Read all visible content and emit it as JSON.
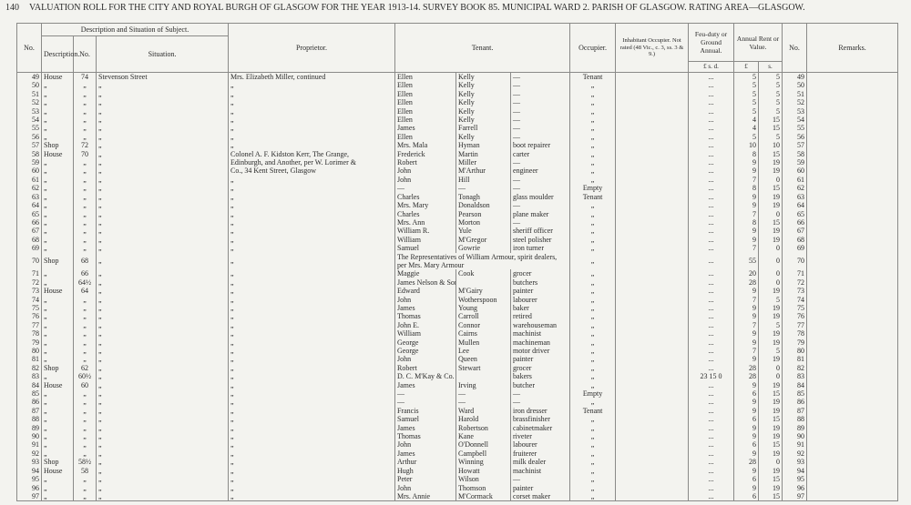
{
  "header": {
    "page_number": "140",
    "title": "VALUATION ROLL FOR THE CITY AND ROYAL BURGH OF GLASGOW FOR THE YEAR 1913-14.   SURVEY BOOK 85.   MUNICIPAL WARD 2.   PARISH OF GLASGOW.   RATING AREA—GLASGOW."
  },
  "columns": {
    "no": "No.",
    "description_situation": "Description and Situation of Subject.",
    "description": "Description.",
    "street_no": "No.",
    "situation": "Situation.",
    "proprietor": "Proprietor.",
    "tenant": "Tenant.",
    "occupier": "Occupier.",
    "inhabitant": "Inhabitant Occupier. Not rated (48 Vic., c. 3, ss. 3 & 9.)",
    "feu_duty": "Feu-duty or Ground Annual.",
    "feu_units": "£  s.  d.",
    "rent": "Annual Rent or Value.",
    "rent_pounds": "£",
    "rent_shillings": "s.",
    "no2": "No.",
    "remarks": "Remarks."
  },
  "table": {
    "rows": [
      [
        49,
        "House",
        "74",
        "Stevenson Street",
        "Mrs. Elizabeth Miller, continued",
        "Ellen",
        "Kelly",
        "—",
        "Tenant",
        "...",
        5,
        5,
        49
      ],
      [
        50,
        "„",
        "„",
        "„",
        "„",
        "Ellen",
        "Kelly",
        "—",
        "„",
        "...",
        5,
        5,
        50
      ],
      [
        51,
        "„",
        "„",
        "„",
        "„",
        "Ellen",
        "Kelly",
        "—",
        "„",
        "...",
        5,
        5,
        51
      ],
      [
        52,
        "„",
        "„",
        "„",
        "„",
        "Ellen",
        "Kelly",
        "—",
        "„",
        "...",
        5,
        5,
        52
      ],
      [
        53,
        "„",
        "„",
        "„",
        "„",
        "Ellen",
        "Kelly",
        "—",
        "„",
        "...",
        5,
        5,
        53
      ],
      [
        54,
        "„",
        "„",
        "„",
        "„",
        "Ellen",
        "Kelly",
        "—",
        "„",
        "...",
        4,
        15,
        54
      ],
      [
        55,
        "„",
        "„",
        "„",
        "„",
        "James",
        "Farrell",
        "—",
        "„",
        "...",
        4,
        15,
        55
      ],
      [
        56,
        "„",
        "„",
        "„",
        "„",
        "Ellen",
        "Kelly",
        "—",
        "„",
        "...",
        5,
        5,
        56
      ],
      [
        57,
        "Shop",
        "72",
        "„",
        "„",
        "Mrs. Mala",
        "Hyman",
        "boot repairer",
        "„",
        "...",
        10,
        10,
        57
      ],
      [
        58,
        "House",
        "70",
        "„",
        "Colonel A. F. Kidston Kerr, The Grange,",
        "Frederick",
        "Martin",
        "carter",
        "„",
        "...",
        8,
        15,
        58
      ],
      [
        59,
        "„",
        "„",
        "„",
        "Edinburgh, and Another, per W. Lorimer &",
        "Robert",
        "Miller",
        "—",
        "„",
        "...",
        9,
        19,
        59
      ],
      [
        60,
        "„",
        "„",
        "„",
        "Co., 34 Kent Street, Glasgow",
        "John",
        "M'Arthur",
        "engineer",
        "„",
        "...",
        9,
        19,
        60
      ],
      [
        61,
        "„",
        "„",
        "„",
        "„",
        "John",
        "Hill",
        "—",
        "„",
        "...",
        7,
        0,
        61
      ],
      [
        62,
        "„",
        "„",
        "„",
        "„",
        "—",
        "—",
        "—",
        "Empty",
        "...",
        8,
        15,
        62
      ],
      [
        63,
        "„",
        "„",
        "„",
        "„",
        "Charles",
        "Tonagh",
        "glass moulder",
        "Tenant",
        "...",
        9,
        19,
        63
      ],
      [
        64,
        "„",
        "„",
        "„",
        "„",
        "Mrs. Mary",
        "Donaldson",
        "—",
        "„",
        "...",
        9,
        19,
        64
      ],
      [
        65,
        "„",
        "„",
        "„",
        "„",
        "Charles",
        "Pearson",
        "plane maker",
        "„",
        "...",
        7,
        0,
        65
      ],
      [
        66,
        "„",
        "„",
        "„",
        "„",
        "Mrs. Ann",
        "Morton",
        "—",
        "„",
        "...",
        8,
        15,
        66
      ],
      [
        67,
        "„",
        "„",
        "„",
        "„",
        "William R.",
        "Yule",
        "sheriff officer",
        "„",
        "...",
        9,
        19,
        67
      ],
      [
        68,
        "„",
        "„",
        "„",
        "„",
        "William",
        "M'Gregor",
        "steel polisher",
        "„",
        "...",
        9,
        19,
        68
      ],
      [
        69,
        "„",
        "„",
        "„",
        "„",
        "Samuel",
        "Gowrie",
        "iron turner",
        "„",
        "...",
        7,
        0,
        69
      ],
      [
        70,
        "Shop",
        "68",
        "„",
        "„",
        "The Representatives of William Armour, spirit dealers, per Mrs. Mary Armour",
        null,
        null,
        "„",
        "...",
        55,
        0,
        70
      ],
      [
        71,
        "„",
        "66",
        "„",
        "„",
        "Maggie",
        "Cook",
        "grocer",
        "„",
        "...",
        20,
        0,
        71
      ],
      [
        72,
        "„",
        "64½",
        "„",
        "„",
        "James Nelson & Son, Ltd.",
        null,
        "butchers",
        "„",
        "...",
        28,
        0,
        72
      ],
      [
        73,
        "House",
        "64",
        "„",
        "„",
        "Edward",
        "M'Gairy",
        "painter",
        "„",
        "...",
        9,
        19,
        73
      ],
      [
        74,
        "„",
        "„",
        "„",
        "„",
        "John",
        "Wotherspoon",
        "labourer",
        "„",
        "...",
        7,
        5,
        74
      ],
      [
        75,
        "„",
        "„",
        "„",
        "„",
        "James",
        "Young",
        "baker",
        "„",
        "...",
        9,
        19,
        75
      ],
      [
        76,
        "„",
        "„",
        "„",
        "„",
        "Thomas",
        "Carroll",
        "retired",
        "„",
        "...",
        9,
        19,
        76
      ],
      [
        77,
        "„",
        "„",
        "„",
        "„",
        "John E.",
        "Connor",
        "warehouseman",
        "„",
        "...",
        7,
        5,
        77
      ],
      [
        78,
        "„",
        "„",
        "„",
        "„",
        "William",
        "Cairns",
        "machinist",
        "„",
        "...",
        9,
        19,
        78
      ],
      [
        79,
        "„",
        "„",
        "„",
        "„",
        "George",
        "Mullen",
        "machineman",
        "„",
        "...",
        9,
        19,
        79
      ],
      [
        80,
        "„",
        "„",
        "„",
        "„",
        "George",
        "Lee",
        "motor driver",
        "„",
        "...",
        7,
        5,
        80
      ],
      [
        81,
        "„",
        "„",
        "„",
        "„",
        "John",
        "Queen",
        "painter",
        "„",
        "...",
        9,
        19,
        81
      ],
      [
        82,
        "Shop",
        "62",
        "„",
        "„",
        "Robert",
        "Stewart",
        "grocer",
        "„",
        "...",
        28,
        0,
        82
      ],
      [
        83,
        "„",
        "60½",
        "„",
        "„",
        "D. C. M'Kay & Co.",
        null,
        "bakers",
        "„",
        "23  15  0",
        28,
        0,
        83
      ],
      [
        84,
        "House",
        "60",
        "„",
        "„",
        "James",
        "Irving",
        "butcher",
        "„",
        "...",
        9,
        19,
        84
      ],
      [
        85,
        "„",
        "„",
        "„",
        "„",
        "—",
        "—",
        "—",
        "Empty",
        "...",
        6,
        15,
        85
      ],
      [
        86,
        "„",
        "„",
        "„",
        "„",
        "—",
        "—",
        "—",
        "„",
        "...",
        9,
        19,
        86
      ],
      [
        87,
        "„",
        "„",
        "„",
        "„",
        "Francis",
        "Ward",
        "iron dresser",
        "Tenant",
        "...",
        9,
        19,
        87
      ],
      [
        88,
        "„",
        "„",
        "„",
        "„",
        "Samuel",
        "Harold",
        "brassfinisher",
        "„",
        "...",
        6,
        15,
        88
      ],
      [
        89,
        "„",
        "„",
        "„",
        "„",
        "James",
        "Robertson",
        "cabinetmaker",
        "„",
        "...",
        9,
        19,
        89
      ],
      [
        90,
        "„",
        "„",
        "„",
        "„",
        "Thomas",
        "Kane",
        "riveter",
        "„",
        "...",
        9,
        19,
        90
      ],
      [
        91,
        "„",
        "„",
        "„",
        "„",
        "John",
        "O'Donnell",
        "labourer",
        "„",
        "...",
        6,
        15,
        91
      ],
      [
        92,
        "„",
        "„",
        "„",
        "„",
        "James",
        "Campbell",
        "fruiterer",
        "„",
        "...",
        9,
        19,
        92
      ],
      [
        93,
        "Shop",
        "58½",
        "„",
        "„",
        "Arthur",
        "Winning",
        "milk dealer",
        "„",
        "...",
        28,
        0,
        93
      ],
      [
        94,
        "House",
        "58",
        "„",
        "„",
        "Hugh",
        "Howatt",
        "machinist",
        "„",
        "...",
        9,
        19,
        94
      ],
      [
        95,
        "„",
        "„",
        "„",
        "„",
        "Peter",
        "Wilson",
        "—",
        "„",
        "...",
        6,
        15,
        95
      ],
      [
        96,
        "„",
        "„",
        "„",
        "„",
        "John",
        "Thomson",
        "painter",
        "„",
        "...",
        9,
        19,
        96
      ],
      [
        97,
        "„",
        "„",
        "„",
        "„",
        "Mrs. Annie",
        "M'Cormack",
        "corset maker",
        "„",
        "...",
        6,
        15,
        97
      ]
    ]
  }
}
